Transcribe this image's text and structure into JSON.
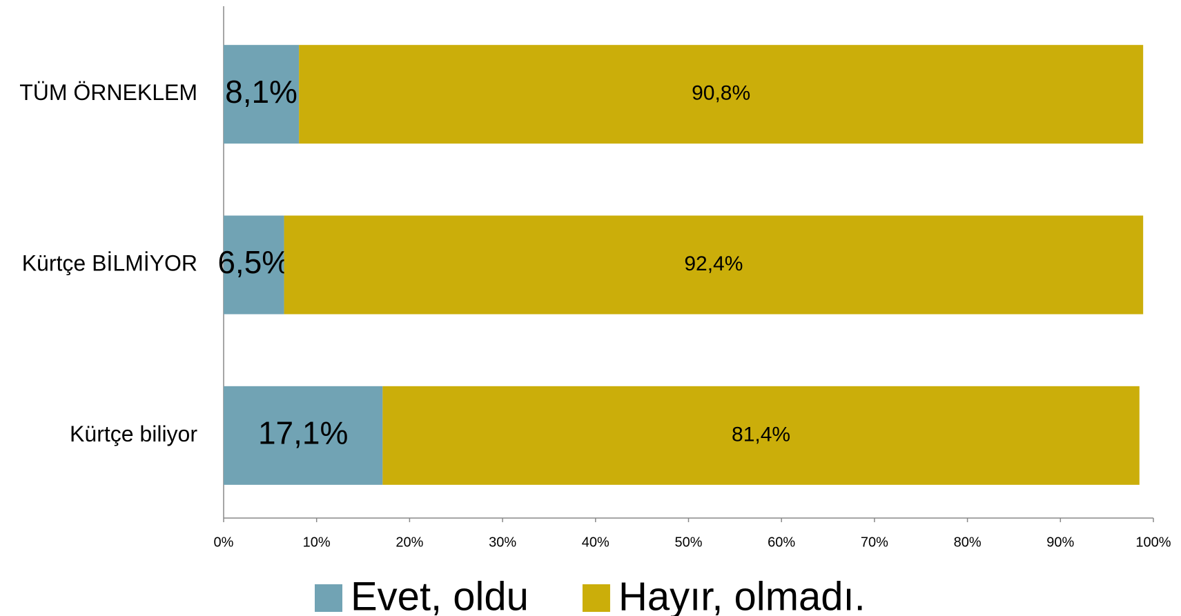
{
  "chart_data": {
    "type": "stacked_bar_horizontal",
    "categories": [
      "TÜM ÖRNEKLEM",
      "Kürtçe BİLMİYOR",
      "Kürtçe biliyor"
    ],
    "series": [
      {
        "name": "Evet, oldu",
        "color": "#71a3b4",
        "values": [
          8.1,
          6.5,
          17.1
        ],
        "value_labels": [
          "8,1%",
          "6,5%",
          "17,1%"
        ]
      },
      {
        "name": "Hayır, olmadı.",
        "color": "#cbae0a",
        "values": [
          90.8,
          92.4,
          81.4
        ],
        "value_labels": [
          "90,8%",
          "92,4%",
          "81,4%"
        ]
      }
    ],
    "xlim": [
      0,
      100
    ],
    "xticks": [
      {
        "value": 0,
        "label": "0%"
      },
      {
        "value": 10,
        "label": "10%"
      },
      {
        "value": 20,
        "label": "20%"
      },
      {
        "value": 30,
        "label": "30%"
      },
      {
        "value": 40,
        "label": "40%"
      },
      {
        "value": 50,
        "label": "50%"
      },
      {
        "value": 60,
        "label": "60%"
      },
      {
        "value": 70,
        "label": "70%"
      },
      {
        "value": 80,
        "label": "80%"
      },
      {
        "value": 90,
        "label": "90%"
      },
      {
        "value": 100,
        "label": "100%"
      }
    ],
    "legend": "bottom"
  }
}
